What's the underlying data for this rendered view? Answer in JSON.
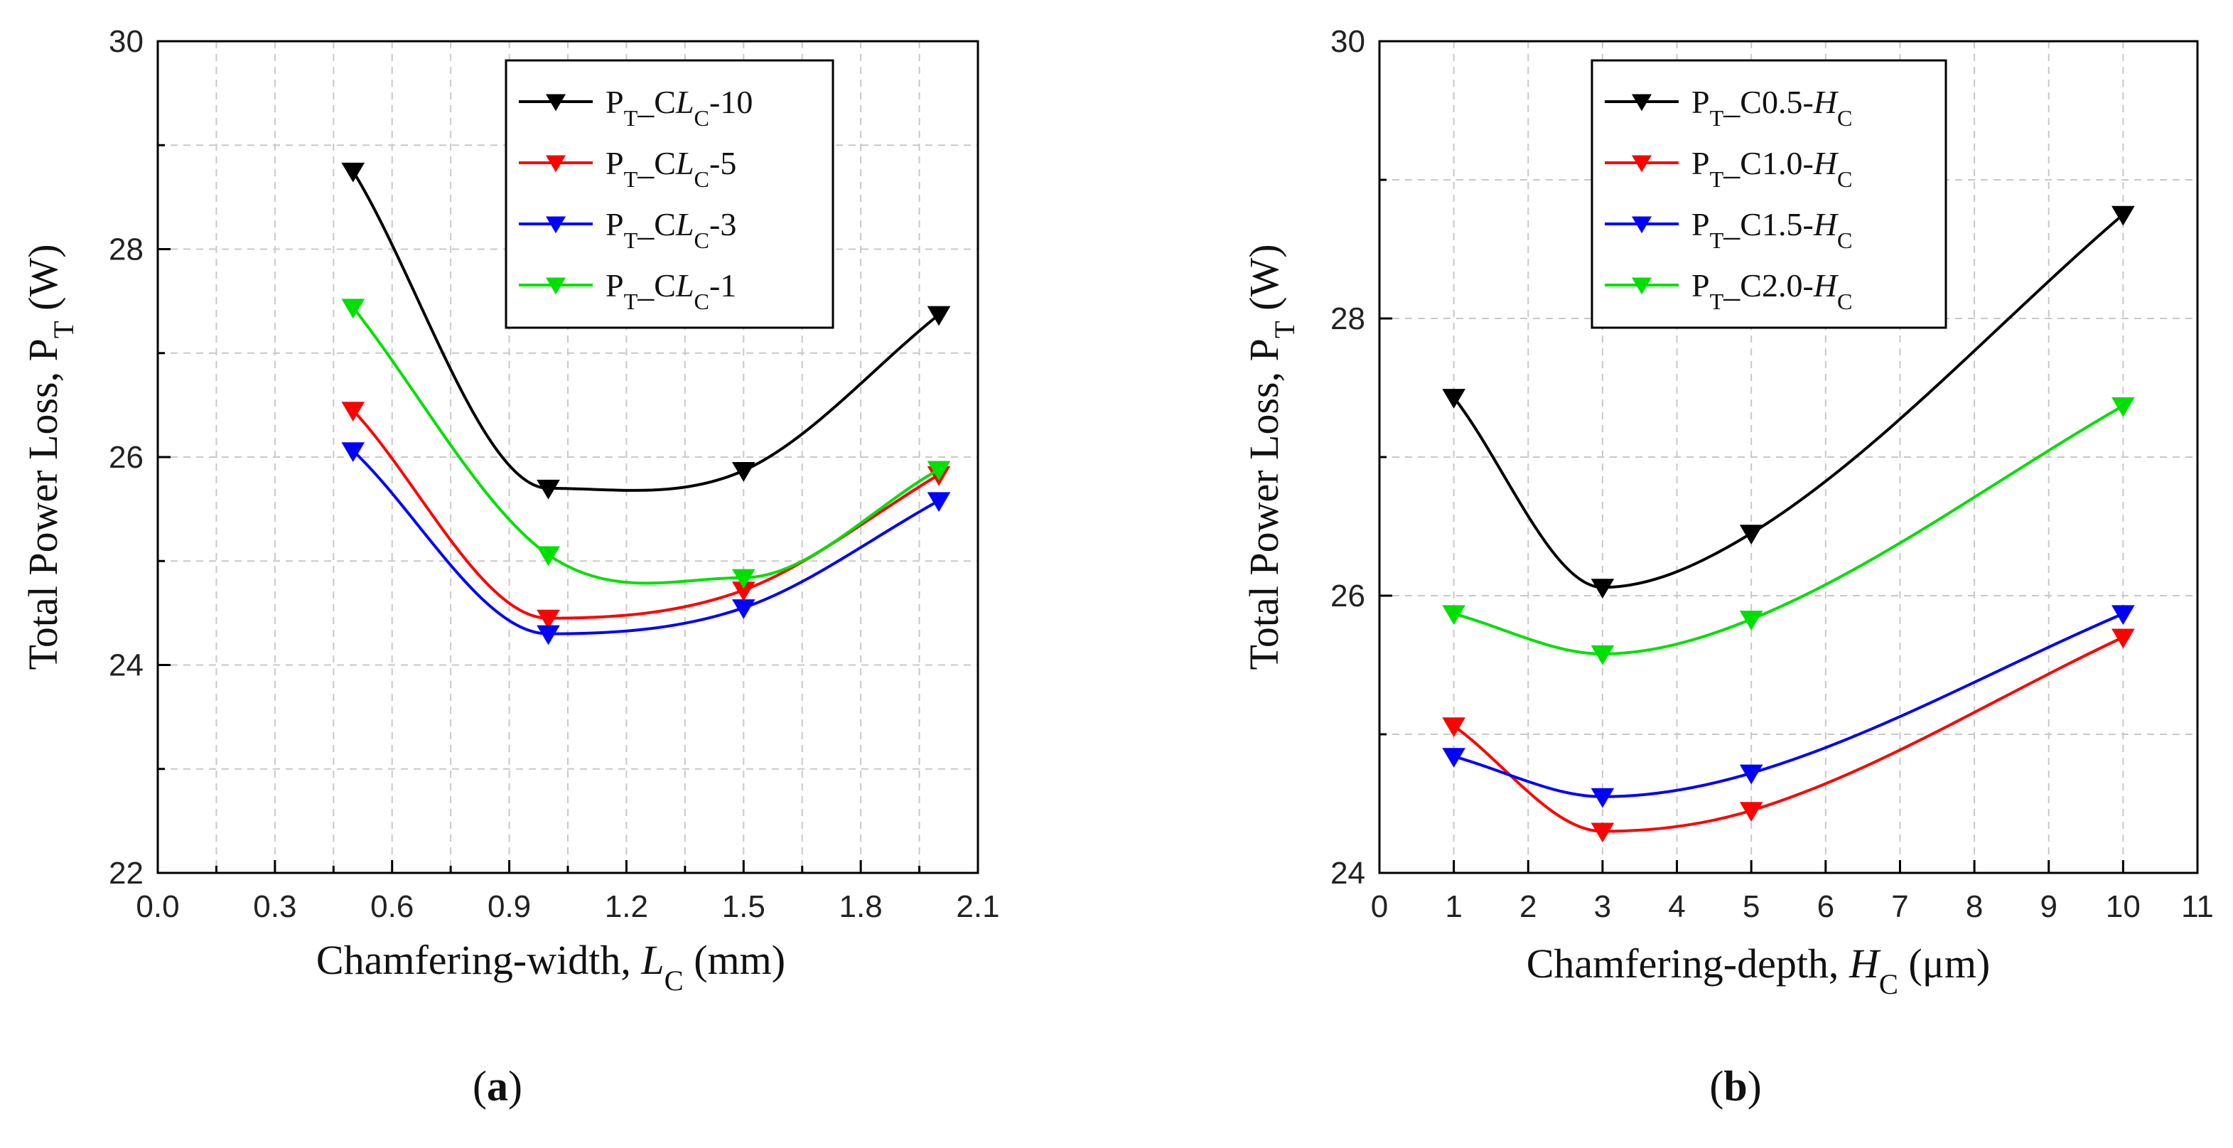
{
  "chart_data": [
    {
      "type": "line",
      "panel_label": "a",
      "xlabel": "Chamfering-width, L_C (mm)",
      "ylabel": "Total Power Loss, P_T (W)",
      "xlim": [
        0.0,
        2.1
      ],
      "ylim": [
        22,
        30
      ],
      "xticks": [
        "0.0",
        "0.3",
        "0.6",
        "0.9",
        "1.2",
        "1.5",
        "1.8",
        "2.1"
      ],
      "yticks": [
        "22",
        "24",
        "26",
        "28",
        "30"
      ],
      "x": [
        0.5,
        1.0,
        1.5,
        2.0
      ],
      "legend_position": "top-right",
      "series": [
        {
          "name": "P_T_CL_C-10",
          "values": [
            28.75,
            25.7,
            25.87,
            27.37
          ]
        },
        {
          "name": "P_T_CL_C-5",
          "values": [
            26.45,
            24.45,
            24.72,
            25.83
          ]
        },
        {
          "name": "P_T_CL_C-3",
          "values": [
            26.06,
            24.3,
            24.55,
            25.58
          ]
        },
        {
          "name": "P_T_CL_C-1",
          "values": [
            27.44,
            25.06,
            24.84,
            25.88
          ]
        }
      ]
    },
    {
      "type": "line",
      "panel_label": "b",
      "xlabel": "Chamfering-depth, H_C (μm)",
      "ylabel": "Total Power Loss, P_T (W)",
      "xlim": [
        0,
        11
      ],
      "ylim": [
        24,
        30
      ],
      "xticks": [
        "0",
        "1",
        "2",
        "3",
        "4",
        "5",
        "6",
        "7",
        "8",
        "9",
        "10",
        "11"
      ],
      "yticks": [
        "24",
        "26",
        "28",
        "30"
      ],
      "x": [
        1,
        3,
        5,
        10
      ],
      "legend_position": "top-left",
      "series": [
        {
          "name": "P_T_C0.5-H_C",
          "values": [
            27.43,
            26.06,
            26.45,
            28.75
          ]
        },
        {
          "name": "P_T_C1.0-H_C",
          "values": [
            25.06,
            24.3,
            24.45,
            25.7
          ]
        },
        {
          "name": "P_T_C1.5-H_C",
          "values": [
            24.84,
            24.55,
            24.72,
            25.87
          ]
        },
        {
          "name": "P_T_C2.0-H_C",
          "values": [
            25.87,
            25.58,
            25.83,
            27.37
          ]
        }
      ]
    }
  ],
  "series_colors": [
    "#000000",
    "#ff0000",
    "#0000ff",
    "#00e000"
  ]
}
